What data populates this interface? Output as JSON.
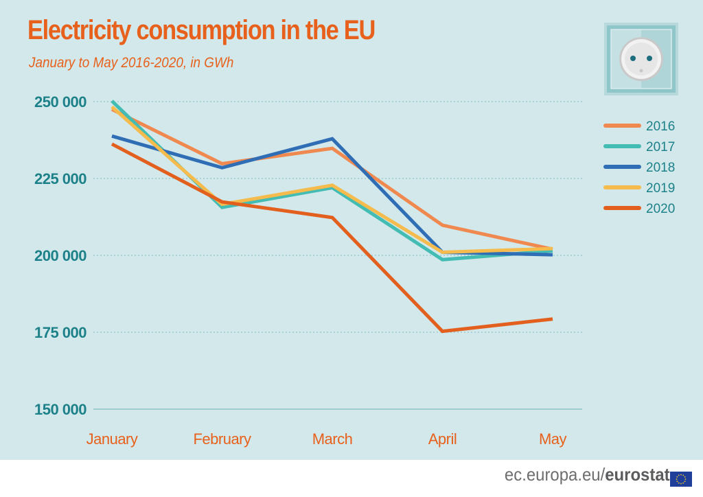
{
  "header": {
    "title": "Electricity consumption in the EU",
    "subtitle": "January to May 2016-2020, in GWh"
  },
  "footer": {
    "source_domain": "ec.europa.eu/",
    "source_brand": "eurostat"
  },
  "colors": {
    "background": "#d2e8ea",
    "title": "#e8611c",
    "axis_text": "#1d8189",
    "category_text": "#e8611c",
    "grid": "#7fbdc3"
  },
  "icons": [
    "power-socket-icon",
    "eu-flag-icon"
  ],
  "chart_data": {
    "type": "line",
    "title": "Electricity consumption in the EU",
    "subtitle": "January to May 2016-2020, in GWh",
    "xlabel": "",
    "ylabel": "",
    "categories": [
      "January",
      "February",
      "March",
      "April",
      "May"
    ],
    "ylim": [
      150000,
      250000
    ],
    "yticks": [
      150000,
      175000,
      200000,
      225000,
      250000
    ],
    "ytick_labels": [
      "150 000",
      "175 000",
      "200 000",
      "225 000",
      "250 000"
    ],
    "grid": "horizontal dotted",
    "legend_position": "right",
    "series": [
      {
        "name": "2016",
        "color": "#f0894f",
        "values": [
          247500,
          229800,
          234800,
          209800,
          202000
        ]
      },
      {
        "name": "2017",
        "color": "#43bcb4",
        "values": [
          250200,
          215600,
          222000,
          198600,
          201500
        ]
      },
      {
        "name": "2018",
        "color": "#2f6db5",
        "values": [
          238800,
          228500,
          237900,
          201000,
          200200
        ]
      },
      {
        "name": "2019",
        "color": "#f5bb4d",
        "values": [
          248300,
          216600,
          222800,
          201000,
          202200
        ]
      },
      {
        "name": "2020",
        "color": "#e35f1e",
        "values": [
          236200,
          217400,
          212300,
          175300,
          179300
        ]
      }
    ]
  }
}
